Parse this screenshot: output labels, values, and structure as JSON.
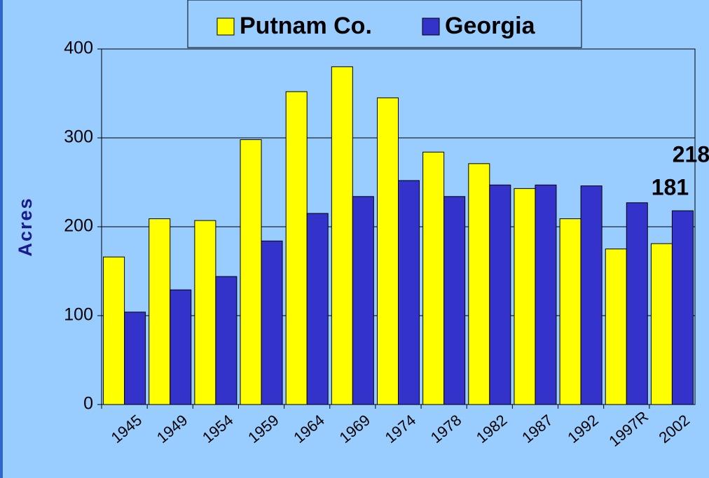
{
  "chart_data": {
    "type": "bar",
    "y_label": "Acres",
    "categories": [
      "1945",
      "1949",
      "1954",
      "1959",
      "1964",
      "1969",
      "1974",
      "1978",
      "1982",
      "1987",
      "1992",
      "1997R",
      "2002"
    ],
    "series": [
      {
        "name": "Putnam Co.",
        "color": "#ffff00",
        "values": [
          166,
          209,
          207,
          298,
          352,
          380,
          345,
          284,
          271,
          243,
          209,
          175,
          181
        ]
      },
      {
        "name": "Georgia",
        "color": "#3333cc",
        "values": [
          104,
          129,
          144,
          184,
          215,
          234,
          252,
          234,
          247,
          247,
          246,
          227,
          218
        ]
      }
    ],
    "label_last": true,
    "ylim": [
      0,
      400
    ],
    "yticks": [
      0,
      100,
      200,
      300,
      400
    ],
    "grid": true,
    "legend": "top"
  }
}
